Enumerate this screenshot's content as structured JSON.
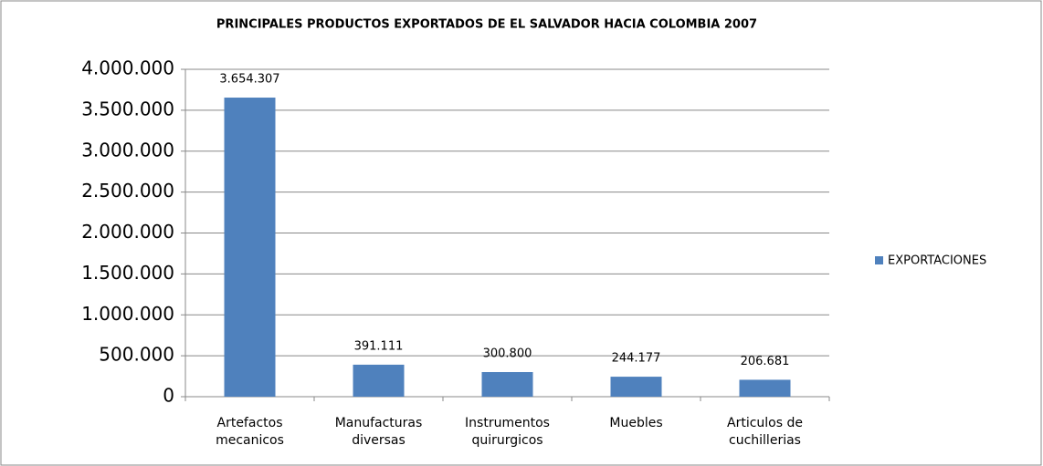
{
  "chart_data": {
    "type": "bar",
    "title": "PRINCIPALES PRODUCTOS EXPORTADOS DE EL SALVADOR HACIA COLOMBIA 2007",
    "categories": [
      "Artefactos mecanicos",
      "Manufacturas diversas",
      "Instrumentos quirurgicos",
      "Muebles",
      "Articulos de cuchillerias"
    ],
    "series": [
      {
        "name": "EXPORTACIONES",
        "color": "#4f81bd",
        "values": [
          3654307,
          391111,
          300800,
          244177,
          206681
        ],
        "value_labels": [
          "3.654.307",
          "391.111",
          "300.800",
          "244.177",
          "206.681"
        ]
      }
    ],
    "ylim": [
      0,
      4000000
    ],
    "yticks": [
      0,
      {
        "value": 500000,
        "label": "500.000"
      },
      {
        "value": 1000000,
        "label": "1.000.000"
      },
      {
        "value": 1500000,
        "label": "1.500.000"
      },
      {
        "value": 2000000,
        "label": "2.000.000"
      },
      {
        "value": 2500000,
        "label": "2.500.000"
      },
      {
        "value": 3000000,
        "label": "3.000.000"
      },
      {
        "value": 3500000,
        "label": "3.500.000"
      },
      {
        "value": 4000000,
        "label": "4.000.000"
      }
    ],
    "grid": true,
    "legend": "right"
  }
}
